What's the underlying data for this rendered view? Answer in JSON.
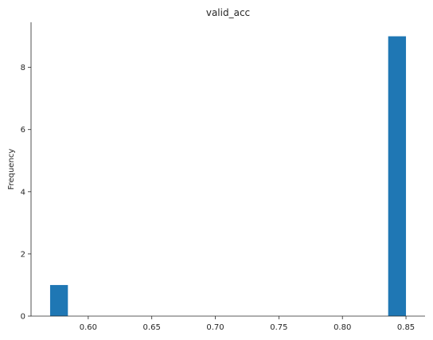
{
  "chart_data": {
    "type": "bar",
    "title": "valid_acc",
    "xlabel": "",
    "ylabel": "Frequency",
    "xlim": [
      0.555,
      0.865
    ],
    "ylim": [
      0,
      9.45
    ],
    "xticks": [
      0.6,
      0.65,
      0.7,
      0.75,
      0.8,
      0.85
    ],
    "xtick_labels": [
      "0.60",
      "0.65",
      "0.70",
      "0.75",
      "0.80",
      "0.85"
    ],
    "yticks": [
      0,
      2,
      4,
      6,
      8
    ],
    "ytick_labels": [
      "0",
      "2",
      "4",
      "6",
      "8"
    ],
    "bins": [
      {
        "x0": 0.57,
        "x1": 0.584,
        "count": 1
      },
      {
        "x0": 0.836,
        "x1": 0.85,
        "count": 9
      }
    ],
    "bar_color": "#1f77b4",
    "grid": false,
    "spines": [
      "left",
      "bottom"
    ]
  }
}
